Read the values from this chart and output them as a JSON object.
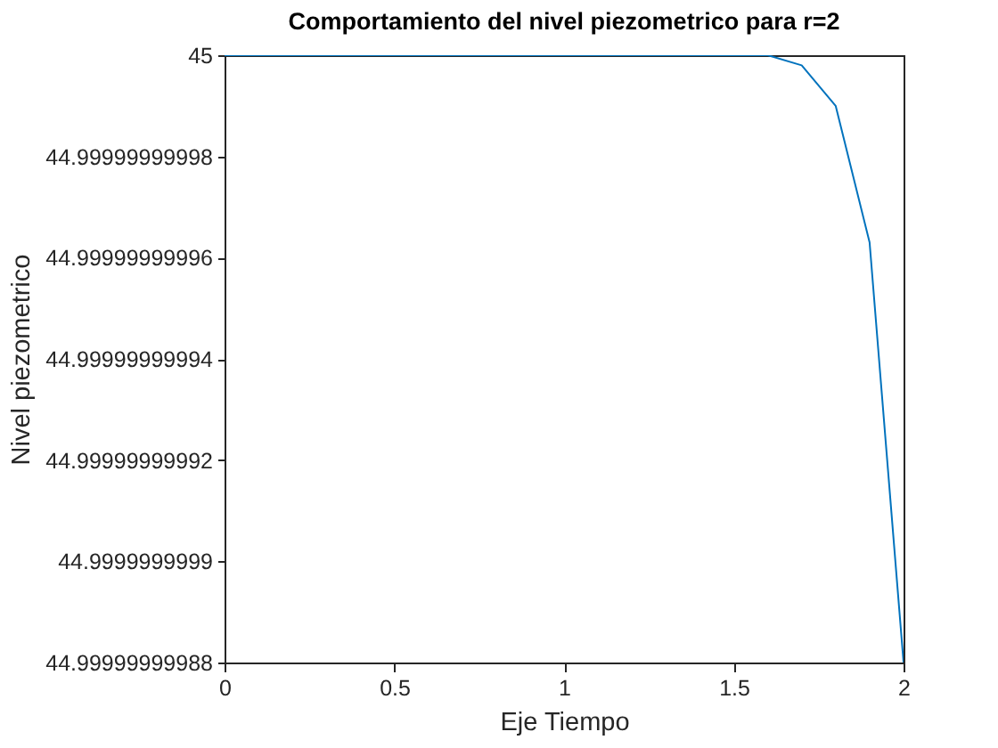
{
  "chart_data": {
    "type": "line",
    "title": "Comportamiento del nivel piezometrico para r=2",
    "xlabel": "Eje Tiempo",
    "ylabel": "Nivel piezometrico",
    "x": [
      0,
      0.1,
      0.2,
      0.3,
      0.4,
      0.5,
      0.6,
      0.7,
      0.8,
      0.9,
      1,
      1.1,
      1.2,
      1.3,
      1.4,
      1.5,
      1.6,
      1.7,
      1.8,
      1.9,
      2
    ],
    "series": [
      {
        "color": "#0072bd",
        "values": [
          45,
          45,
          45,
          45,
          45,
          45,
          45,
          45,
          45,
          45,
          45,
          45,
          45,
          45,
          45,
          45,
          45,
          44.999999999998,
          44.99999999999,
          44.999999999963,
          44.99999999988
        ]
      }
    ],
    "xlim": [
      0,
      2
    ],
    "xticks": [
      0,
      0.5,
      1,
      1.5,
      2
    ],
    "ylim": [
      44.99999999988,
      45
    ],
    "yticks": [
      44.99999999988,
      44.9999999999,
      44.99999999992,
      44.99999999994,
      44.99999999996,
      44.99999999998,
      45
    ],
    "grid": false,
    "line_style": "solid"
  }
}
